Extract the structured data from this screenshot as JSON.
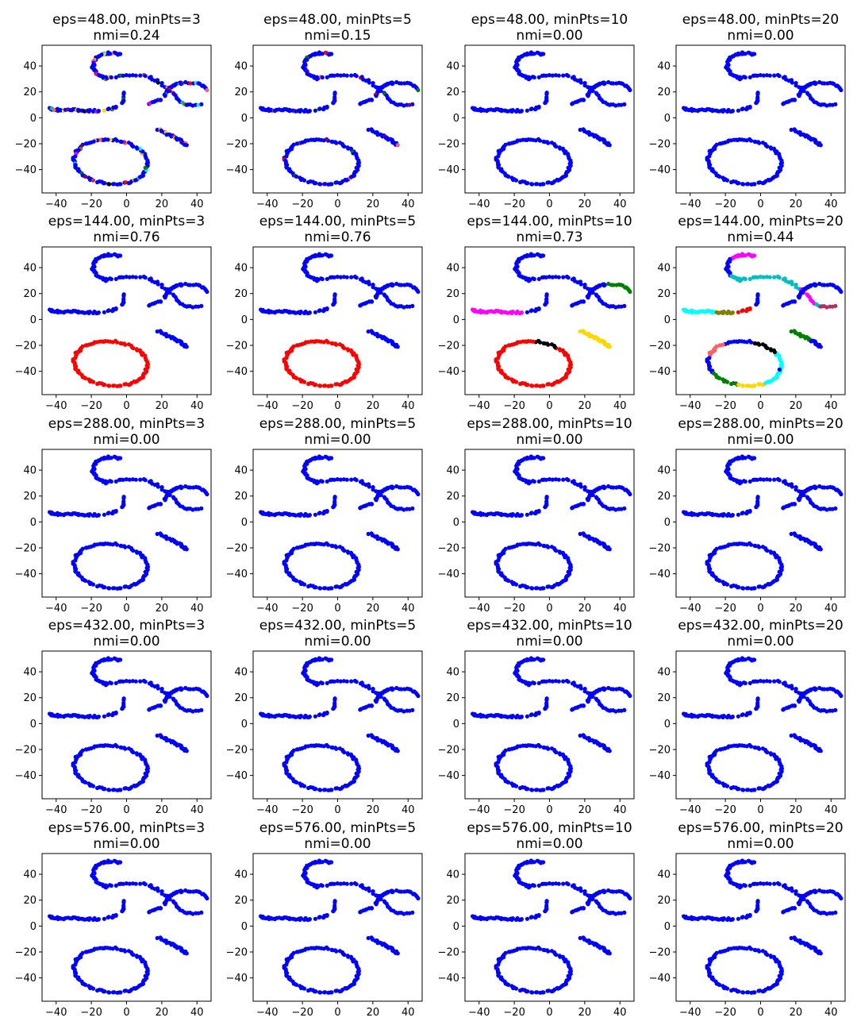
{
  "figure": {
    "rows": 5,
    "cols": 4
  },
  "chart_data": [
    {
      "type": "scatter",
      "title_line1": "eps=48.00, minPts=3",
      "title_line2": "nmi=0.24",
      "coloring": "fragmented"
    },
    {
      "type": "scatter",
      "title_line1": "eps=48.00, minPts=5",
      "title_line2": "nmi=0.15",
      "coloring": "sparse"
    },
    {
      "type": "scatter",
      "title_line1": "eps=48.00, minPts=10",
      "title_line2": "nmi=0.00",
      "coloring": "uniform"
    },
    {
      "type": "scatter",
      "title_line1": "eps=48.00, minPts=20",
      "title_line2": "nmi=0.00",
      "coloring": "uniform"
    },
    {
      "type": "scatter",
      "title_line1": "eps=144.00, minPts=3",
      "title_line2": "nmi=0.76",
      "coloring": "two_clusters"
    },
    {
      "type": "scatter",
      "title_line1": "eps=144.00, minPts=5",
      "title_line2": "nmi=0.76",
      "coloring": "two_clusters"
    },
    {
      "type": "scatter",
      "title_line1": "eps=144.00, minPts=10",
      "title_line2": "nmi=0.73",
      "coloring": "multi_clusters"
    },
    {
      "type": "scatter",
      "title_line1": "eps=144.00, minPts=20",
      "title_line2": "nmi=0.44",
      "coloring": "many_clusters"
    },
    {
      "type": "scatter",
      "title_line1": "eps=288.00, minPts=3",
      "title_line2": "nmi=0.00",
      "coloring": "uniform"
    },
    {
      "type": "scatter",
      "title_line1": "eps=288.00, minPts=5",
      "title_line2": "nmi=0.00",
      "coloring": "uniform"
    },
    {
      "type": "scatter",
      "title_line1": "eps=288.00, minPts=10",
      "title_line2": "nmi=0.00",
      "coloring": "uniform"
    },
    {
      "type": "scatter",
      "title_line1": "eps=288.00, minPts=20",
      "title_line2": "nmi=0.00",
      "coloring": "uniform"
    },
    {
      "type": "scatter",
      "title_line1": "eps=432.00, minPts=3",
      "title_line2": "nmi=0.00",
      "coloring": "uniform"
    },
    {
      "type": "scatter",
      "title_line1": "eps=432.00, minPts=5",
      "title_line2": "nmi=0.00",
      "coloring": "uniform"
    },
    {
      "type": "scatter",
      "title_line1": "eps=432.00, minPts=10",
      "title_line2": "nmi=0.00",
      "coloring": "uniform"
    },
    {
      "type": "scatter",
      "title_line1": "eps=432.00, minPts=20",
      "title_line2": "nmi=0.00",
      "coloring": "uniform"
    },
    {
      "type": "scatter",
      "title_line1": "eps=576.00, minPts=3",
      "title_line2": "nmi=0.00",
      "coloring": "uniform"
    },
    {
      "type": "scatter",
      "title_line1": "eps=576.00, minPts=5",
      "title_line2": "nmi=0.00",
      "coloring": "uniform"
    },
    {
      "type": "scatter",
      "title_line1": "eps=576.00, minPts=10",
      "title_line2": "nmi=0.00",
      "coloring": "uniform"
    },
    {
      "type": "scatter",
      "title_line1": "eps=576.00, minPts=20",
      "title_line2": "nmi=0.00",
      "coloring": "uniform"
    }
  ],
  "axes": {
    "xlim": [
      -48,
      48
    ],
    "ylim": [
      -58,
      56
    ],
    "xticks": [
      -40,
      -20,
      0,
      20,
      40
    ],
    "yticks": [
      40,
      20,
      0,
      -20,
      -40
    ],
    "xtick_labels": [
      "−40",
      "−20",
      "0",
      "20",
      "40"
    ],
    "ytick_labels": [
      "40",
      "20",
      "0",
      "−20",
      "−40"
    ],
    "grid": false
  },
  "shape_segments": [
    {
      "name": "ellipse",
      "kind": "ellipse",
      "cx": -9,
      "cy": -34,
      "rx": 21,
      "ry": 17,
      "rot": -14,
      "n": 100
    },
    {
      "name": "top-loop",
      "kind": "arc",
      "cx": -9,
      "cy": 40,
      "r": 10,
      "a0": 60,
      "a1": 260,
      "n": 42
    },
    {
      "name": "loop-tail",
      "kind": "poly",
      "pts": [
        [
          -12,
          31
        ],
        [
          -5,
          32
        ],
        [
          0,
          33
        ],
        [
          8,
          33
        ],
        [
          14,
          31
        ],
        [
          18,
          28
        ],
        [
          22,
          24
        ],
        [
          26,
          19
        ],
        [
          29,
          15
        ],
        [
          32,
          11
        ],
        [
          36,
          10
        ],
        [
          42,
          10
        ]
      ],
      "n": 42
    },
    {
      "name": "bottom-line",
      "kind": "poly",
      "pts": [
        [
          -44,
          7
        ],
        [
          -38,
          6
        ],
        [
          -30,
          6
        ],
        [
          -22,
          5.5
        ],
        [
          -16,
          5.5
        ]
      ],
      "n": 36
    },
    {
      "name": "small-dash",
      "kind": "poly",
      "pts": [
        [
          -12,
          6
        ],
        [
          -8,
          7
        ],
        [
          -6,
          8
        ]
      ],
      "n": 8
    },
    {
      "name": "vertical-mark",
      "kind": "poly",
      "pts": [
        [
          -2,
          19
        ],
        [
          -2,
          14
        ],
        [
          -3,
          11
        ]
      ],
      "n": 8
    },
    {
      "name": "right-arc",
      "kind": "arc",
      "cx": 33,
      "cy": 16,
      "r": 11,
      "a0": 95,
      "a1": 175,
      "n": 26
    },
    {
      "name": "right-cap",
      "kind": "poly",
      "pts": [
        [
          34,
          27
        ],
        [
          39,
          27
        ],
        [
          43,
          25
        ],
        [
          45,
          22
        ]
      ],
      "n": 12
    },
    {
      "name": "diagonal",
      "kind": "poly",
      "pts": [
        [
          18,
          -9
        ],
        [
          24,
          -13
        ],
        [
          30,
          -17
        ],
        [
          34,
          -21
        ]
      ],
      "n": 26
    },
    {
      "name": "left-of-cross",
      "kind": "poly",
      "pts": [
        [
          13,
          11
        ],
        [
          17,
          13
        ],
        [
          20,
          14
        ]
      ],
      "n": 10
    }
  ],
  "palette": {
    "base": "#0000ff",
    "cluster_colors": [
      "#ff0000",
      "#ff00ff",
      "#00ffff",
      "#008000",
      "#ffd700",
      "#000000",
      "#800080",
      "#00bfbf",
      "#808000",
      "#ff6060",
      "#b03060",
      "#ffa500"
    ]
  }
}
